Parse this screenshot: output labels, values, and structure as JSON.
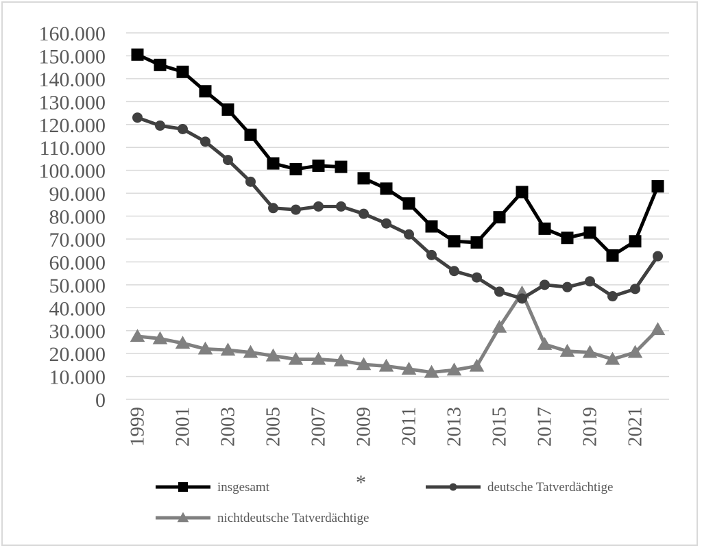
{
  "chart_data": {
    "type": "line",
    "title": "",
    "xlabel": "",
    "ylabel": "",
    "x": [
      1999,
      2000,
      2001,
      2002,
      2003,
      2004,
      2005,
      2006,
      2007,
      2008,
      2009,
      2010,
      2011,
      2012,
      2013,
      2014,
      2015,
      2016,
      2017,
      2018,
      2019,
      2020,
      2021,
      2022
    ],
    "x_tick_labels": [
      "1999",
      "2001",
      "2003",
      "2005",
      "2007",
      "2009",
      "2011",
      "2013",
      "2015",
      "2017",
      "2019",
      "2021"
    ],
    "y_tick_labels": [
      "0",
      "10.000",
      "20.000",
      "30.000",
      "40.000",
      "50.000",
      "60.000",
      "70.000",
      "80.000",
      "90.000",
      "100.000",
      "110.000",
      "120.000",
      "130.000",
      "140.000",
      "150.000",
      "160.000"
    ],
    "ylim": [
      0,
      160000
    ],
    "grid": true,
    "legend_position": "bottom",
    "annotation": "*",
    "annotation_x": 2009,
    "series_break_after": 2008,
    "series": [
      {
        "name": "insgesamt",
        "marker": "square",
        "color": "#000000",
        "values": [
          150500,
          146000,
          143000,
          134500,
          126500,
          115500,
          103000,
          100500,
          102000,
          101500,
          96500,
          92000,
          85500,
          75500,
          69000,
          68500,
          79500,
          90500,
          74500,
          70500,
          72800,
          62800,
          69000,
          93000
        ]
      },
      {
        "name": "deutsche Tatverdächtige",
        "marker": "circle",
        "color": "#404040",
        "values": [
          123000,
          119500,
          118000,
          112500,
          104500,
          95000,
          83500,
          82800,
          84200,
          84200,
          81000,
          76800,
          72000,
          63000,
          56000,
          53200,
          47000,
          44000,
          50000,
          49000,
          51500,
          45000,
          48200,
          62500
        ]
      },
      {
        "name": "nichtdeutsche Tatverdächtige",
        "marker": "triangle",
        "color": "#808080",
        "values": [
          27500,
          26500,
          24500,
          22000,
          21500,
          20500,
          19000,
          17500,
          17500,
          16800,
          15200,
          14500,
          13200,
          11800,
          12800,
          14500,
          31500,
          46500,
          24000,
          21000,
          20500,
          17500,
          20500,
          30500
        ]
      }
    ]
  }
}
